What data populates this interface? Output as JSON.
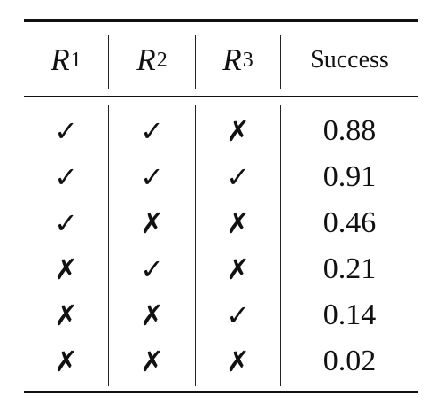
{
  "table": {
    "headers": [
      {
        "base": "R",
        "sub": "1"
      },
      {
        "base": "R",
        "sub": "2"
      },
      {
        "base": "R",
        "sub": "3"
      },
      {
        "text": "Success"
      }
    ],
    "rows": [
      {
        "r1": "✓",
        "r2": "✓",
        "r3": "✗",
        "success": "0.88"
      },
      {
        "r1": "✓",
        "r2": "✓",
        "r3": "✓",
        "success": "0.91"
      },
      {
        "r1": "✓",
        "r2": "✗",
        "r3": "✗",
        "success": "0.46"
      },
      {
        "r1": "✗",
        "r2": "✓",
        "r3": "✗",
        "success": "0.21"
      },
      {
        "r1": "✗",
        "r2": "✗",
        "r3": "✓",
        "success": "0.14"
      },
      {
        "r1": "✗",
        "r2": "✗",
        "r3": "✗",
        "success": "0.02"
      }
    ]
  }
}
